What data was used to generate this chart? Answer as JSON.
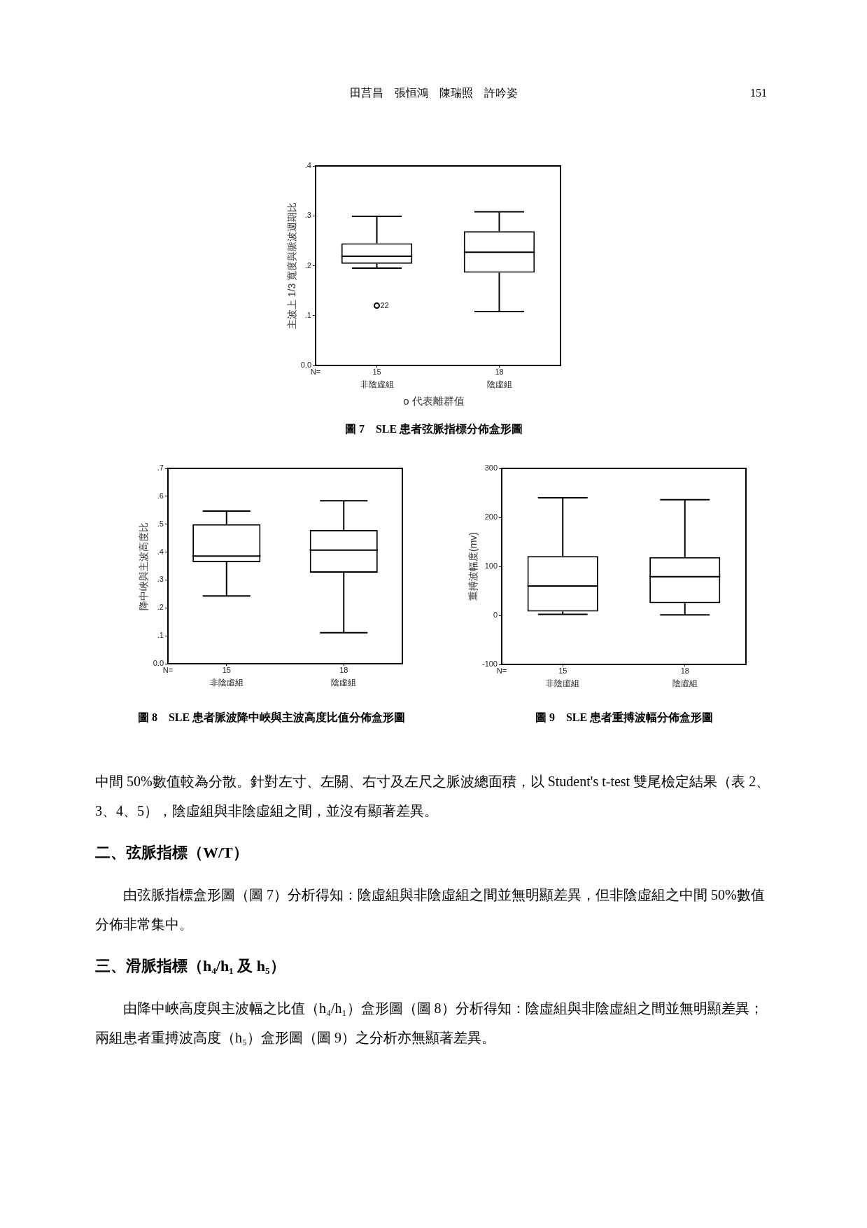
{
  "chart_data": [
    {
      "type": "box",
      "title": "圖 7　SLE 患者弦脈指標分佈盒形圖",
      "ylabel": "主波上 1/3 寬度與脈波週期比",
      "categories": [
        "非陰虛組",
        "陰虛組"
      ],
      "boxes": [
        {
          "low": 0.195,
          "q1": 0.204,
          "median": 0.219,
          "q3": 0.245,
          "high": 0.299,
          "outliers": [
            0.12
          ]
        },
        {
          "low": 0.108,
          "q1": 0.186,
          "median": 0.227,
          "q3": 0.269,
          "high": 0.308
        }
      ],
      "ylim": [
        0,
        0.4
      ],
      "yticks": [
        {
          "value": 0,
          "label": "0.0"
        },
        {
          "value": 0.1,
          "label": ".1"
        },
        {
          "value": 0.2,
          "label": ".2"
        },
        {
          "value": 0.3,
          "label": ".3"
        },
        {
          "value": 0.4,
          "label": ".4"
        }
      ],
      "annotations": [
        "田莒昌　張恒鴻　陳瑞照　許吟姿",
        "151",
        "N=",
        "15",
        "18",
        "22",
        "o 代表離群值"
      ]
    },
    {
      "type": "box",
      "title": "圖 8　SLE 患者脈波降中峽與主波高度比值分佈盒形圖",
      "ylabel": "降中峽與主波高度比",
      "categories": [
        "非陰虛組",
        "陰虛組"
      ],
      "boxes": [
        {
          "low": 0.243,
          "q1": 0.364,
          "median": 0.386,
          "q3": 0.5,
          "high": 0.547
        },
        {
          "low": 0.111,
          "q1": 0.326,
          "median": 0.407,
          "q3": 0.479,
          "high": 0.584
        }
      ],
      "ylim": [
        0,
        0.7
      ],
      "yticks": [
        {
          "value": 0,
          "label": "0.0"
        },
        {
          "value": 0.1,
          "label": ".1"
        },
        {
          "value": 0.2,
          "label": ".2"
        },
        {
          "value": 0.3,
          "label": ".3"
        },
        {
          "value": 0.4,
          "label": ".4"
        },
        {
          "value": 0.5,
          "label": ".5"
        },
        {
          "value": 0.6,
          "label": ".6"
        },
        {
          "value": 0.7,
          "label": ".7"
        }
      ],
      "annotations": [
        "N=",
        "15",
        "18"
      ]
    },
    {
      "type": "box",
      "title": "圖 9　SLE 患者重搏波幅分佈盒形圖",
      "ylabel": "重搏波幅度(mv)",
      "categories": [
        "非陰虛組",
        "陰虛組"
      ],
      "boxes": [
        {
          "low": 2,
          "q1": 8,
          "median": 60,
          "q3": 121,
          "high": 240
        },
        {
          "low": 1,
          "q1": 25,
          "median": 79,
          "q3": 119,
          "high": 236
        }
      ],
      "ylim": [
        -100,
        300
      ],
      "yticks": [
        -100,
        0,
        100,
        200,
        300
      ],
      "annotations": [
        "N=",
        "15",
        "18",
        "中間 50%數值較為分散。針對左寸、左關、右寸及左尺之脈波總面積，以 Student's t-test 雙尾檢定結果（表 2、3、4、5），陰虛組與非陰虛組之間，並沒有顯著差異。",
        "二、弦脈指標（W/T）",
        "由弦脈指標盒形圖（圖 7）分析得知：陰虛組與非陰虛組之間並無明顯差異，但非陰虛組之中間 50%數值分佈非常集中。",
        "三、滑脈指標（h₄/h₁ 及 h₅）",
        "由降中峽高度與主波幅之比值（h₄/h₁）盒形圖（圖 8）分析得知：陰虛組與非陰虛組之間並無明顯差異；兩組患者重搏波高度（h₅）盒形圖（圖 9）之分析亦無顯著差異。"
      ]
    }
  ]
}
